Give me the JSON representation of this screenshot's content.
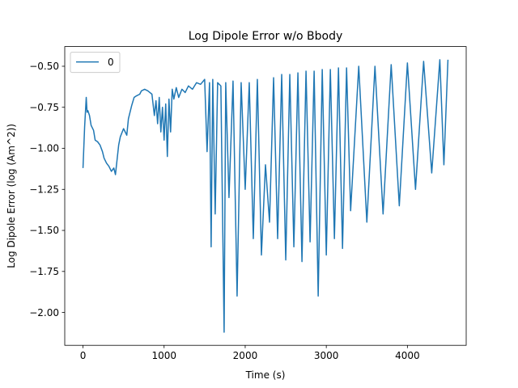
{
  "chart_data": {
    "type": "line",
    "title": "Log Dipole Error w/o Bbody",
    "xlabel": "Time (s)",
    "ylabel": "Log Dipole Error (log (Am^2))",
    "xlim": [
      -225,
      4725
    ],
    "ylim": [
      -2.2,
      -0.38
    ],
    "xticks": [
      0,
      1000,
      2000,
      3000,
      4000
    ],
    "xtick_labels": [
      "0",
      "1000",
      "2000",
      "3000",
      "4000"
    ],
    "yticks": [
      -2.0,
      -1.75,
      -1.5,
      -1.25,
      -1.0,
      -0.75,
      -0.5
    ],
    "ytick_labels": [
      "−2.00",
      "−1.75",
      "−1.50",
      "−1.25",
      "−1.00",
      "−0.75",
      "−0.50"
    ],
    "grid": false,
    "legend_position": "top-left",
    "series": [
      {
        "name": "0",
        "color": "#1f77b4",
        "x": [
          0,
          20,
          40,
          50,
          60,
          80,
          100,
          130,
          150,
          180,
          210,
          240,
          260,
          290,
          320,
          350,
          380,
          400,
          420,
          440,
          460,
          500,
          540,
          560,
          600,
          630,
          660,
          700,
          720,
          760,
          800,
          850,
          880,
          900,
          920,
          940,
          960,
          980,
          1000,
          1020,
          1040,
          1060,
          1080,
          1100,
          1120,
          1150,
          1180,
          1220,
          1260,
          1300,
          1350,
          1400,
          1450,
          1500,
          1530,
          1560,
          1580,
          1600,
          1630,
          1660,
          1700,
          1740,
          1760,
          1800,
          1850,
          1900,
          1950,
          2000,
          2050,
          2100,
          2150,
          2200,
          2250,
          2300,
          2350,
          2400,
          2450,
          2500,
          2550,
          2600,
          2650,
          2700,
          2750,
          2800,
          2850,
          2900,
          2950,
          3000,
          3050,
          3100,
          3150,
          3200,
          3250,
          3300,
          3400,
          3500,
          3600,
          3700,
          3800,
          3900,
          4000,
          4100,
          4200,
          4300,
          4400,
          4450,
          4500
        ],
        "values": [
          -1.12,
          -0.87,
          -0.69,
          -0.78,
          -0.77,
          -0.8,
          -0.86,
          -0.89,
          -0.95,
          -0.96,
          -0.98,
          -1.02,
          -1.06,
          -1.09,
          -1.11,
          -1.14,
          -1.12,
          -1.16,
          -1.07,
          -0.98,
          -0.93,
          -0.88,
          -0.92,
          -0.82,
          -0.74,
          -0.69,
          -0.68,
          -0.67,
          -0.65,
          -0.64,
          -0.65,
          -0.67,
          -0.8,
          -0.71,
          -0.85,
          -0.69,
          -0.9,
          -0.75,
          -0.95,
          -0.73,
          -1.05,
          -0.7,
          -0.9,
          -0.64,
          -0.7,
          -0.63,
          -0.69,
          -0.64,
          -0.66,
          -0.62,
          -0.64,
          -0.6,
          -0.61,
          -0.58,
          -1.02,
          -0.6,
          -1.6,
          -0.58,
          -1.4,
          -0.6,
          -0.62,
          -2.12,
          -0.6,
          -1.3,
          -0.59,
          -1.9,
          -0.6,
          -1.25,
          -0.6,
          -1.55,
          -0.58,
          -1.65,
          -1.1,
          -1.45,
          -0.57,
          -1.55,
          -0.55,
          -1.68,
          -0.55,
          -1.6,
          -0.54,
          -1.69,
          -0.53,
          -1.57,
          -0.53,
          -1.9,
          -0.52,
          -1.65,
          -0.52,
          -1.55,
          -0.51,
          -1.61,
          -0.51,
          -1.38,
          -0.5,
          -1.45,
          -0.5,
          -1.4,
          -0.49,
          -1.35,
          -0.48,
          -1.25,
          -0.47,
          -1.15,
          -0.46,
          -1.1,
          -0.46
        ]
      }
    ]
  }
}
